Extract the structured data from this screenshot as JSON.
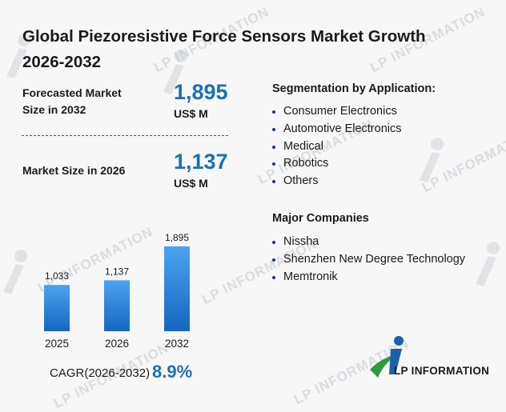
{
  "title": "Global Piezoresistive Force Sensors Market Growth 2026-2032",
  "forecast": {
    "label": "Forecasted Market Size in 2032",
    "value": "1,895",
    "unit": "US$ M"
  },
  "current": {
    "label": "Market Size in 2026",
    "value": "1,137",
    "unit": "US$ M"
  },
  "segmentation": {
    "title": "Segmentation by Application:",
    "items": [
      "Consumer Electronics",
      "Automotive Electronics",
      "Medical",
      "Robotics",
      "Others"
    ]
  },
  "companies": {
    "title": "Major Companies",
    "items": [
      "Nissha",
      "Shenzhen New Degree Technology",
      "Memtronik"
    ]
  },
  "cagr": {
    "label": "CAGR(2026-2032)",
    "value": "8.9%"
  },
  "logo": {
    "text": "LP INFORMATION"
  },
  "watermark": {
    "text": "LP INFORMATION"
  },
  "colors": {
    "accent": "#1d6fb8",
    "bar_top": "#4aa3f0",
    "bar_bottom": "#1766c2",
    "logo_green": "#2e9a3c",
    "logo_blue": "#1f5fa8"
  },
  "chart_data": {
    "type": "bar",
    "categories": [
      "2025",
      "2026",
      "2032"
    ],
    "values": [
      1033,
      1137,
      1895
    ],
    "value_labels": [
      "1,033",
      "1,137",
      "1,895"
    ],
    "title": "",
    "xlabel": "",
    "ylabel": "",
    "ylim": [
      0,
      2000
    ],
    "grid": false,
    "legend": "none"
  }
}
